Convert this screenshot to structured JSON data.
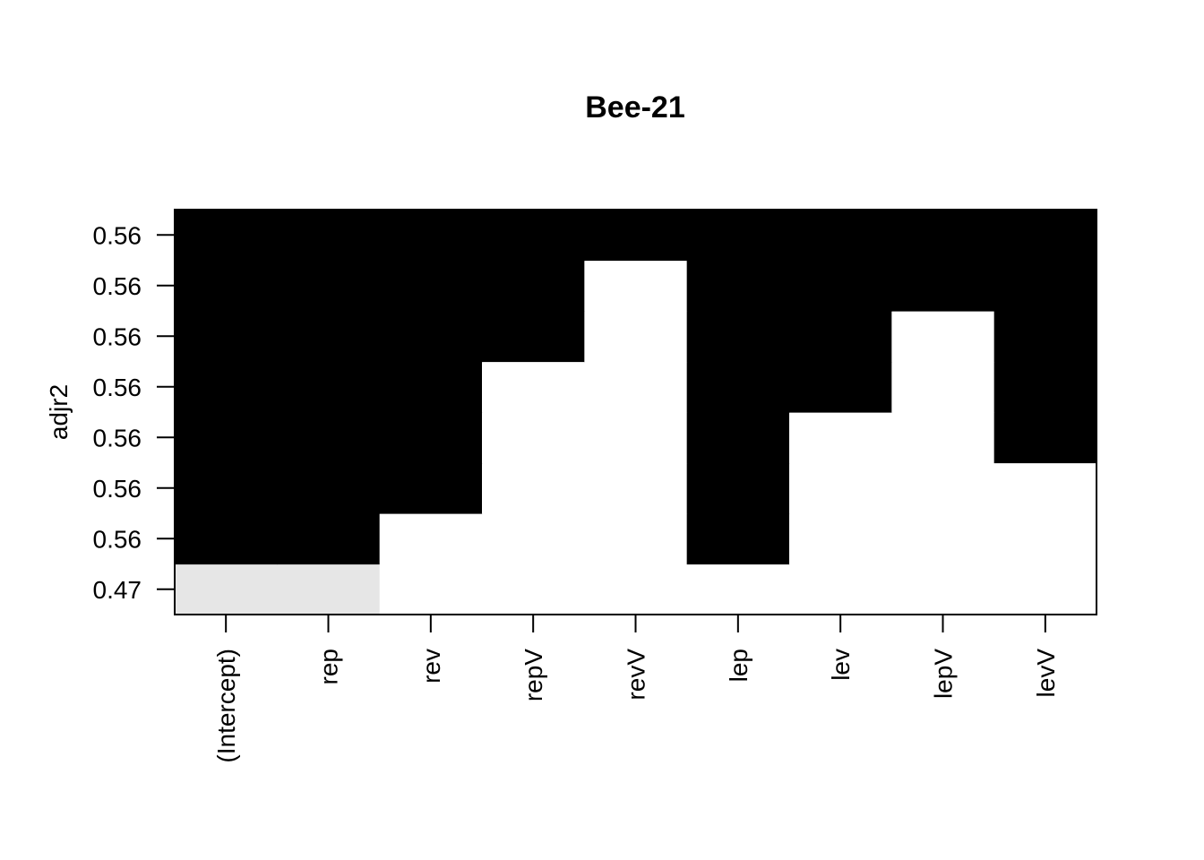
{
  "chart_data": {
    "type": "heatmap",
    "title": "Bee-21",
    "xlabel": "",
    "ylabel": "adjr2",
    "x_categories": [
      "(Intercept)",
      "rep",
      "rev",
      "repV",
      "revV",
      "lep",
      "lev",
      "lepV",
      "levV"
    ],
    "y_tick_labels": [
      "0.47",
      "0.56",
      "0.56",
      "0.56",
      "0.56",
      "0.56",
      "0.56",
      "0.56"
    ],
    "rows": [
      {
        "adjr2": "0.47",
        "included": [
          1,
          1,
          0,
          0,
          0,
          0,
          0,
          0,
          0
        ],
        "shade": "#e6e6e6"
      },
      {
        "adjr2": "0.56",
        "included": [
          1,
          1,
          0,
          0,
          0,
          1,
          0,
          0,
          0
        ],
        "shade": "#000000"
      },
      {
        "adjr2": "0.56",
        "included": [
          1,
          1,
          1,
          0,
          0,
          1,
          0,
          0,
          0
        ],
        "shade": "#000000"
      },
      {
        "adjr2": "0.56",
        "included": [
          1,
          1,
          1,
          0,
          0,
          1,
          0,
          0,
          1
        ],
        "shade": "#000000"
      },
      {
        "adjr2": "0.56",
        "included": [
          1,
          1,
          1,
          0,
          0,
          1,
          1,
          0,
          1
        ],
        "shade": "#000000"
      },
      {
        "adjr2": "0.56",
        "included": [
          1,
          1,
          1,
          1,
          0,
          1,
          1,
          0,
          1
        ],
        "shade": "#000000"
      },
      {
        "adjr2": "0.56",
        "included": [
          1,
          1,
          1,
          1,
          0,
          1,
          1,
          1,
          1
        ],
        "shade": "#000000"
      },
      {
        "adjr2": "0.56",
        "included": [
          1,
          1,
          1,
          1,
          1,
          1,
          1,
          1,
          1
        ],
        "shade": "#000000"
      }
    ],
    "grid": false,
    "legend": "none"
  }
}
